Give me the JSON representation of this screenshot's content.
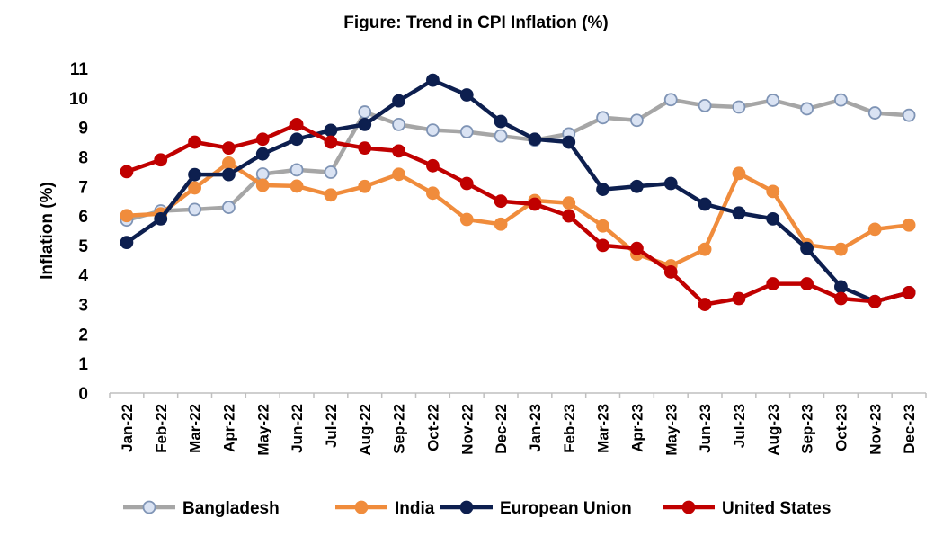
{
  "chart_data": {
    "type": "line",
    "title": "Figure: Trend in CPI Inflation (%)",
    "xlabel": "",
    "ylabel": "Inflation (%)",
    "ylim": [
      0,
      11
    ],
    "yticks": [
      0,
      1,
      2,
      3,
      4,
      5,
      6,
      7,
      8,
      9,
      10,
      11
    ],
    "grid": false,
    "legend_position": "bottom",
    "categories": [
      "Jan-22",
      "Feb-22",
      "Mar-22",
      "Apr-22",
      "May-22",
      "Jun-22",
      "Jul-22",
      "Aug-22",
      "Sep-22",
      "Oct-22",
      "Nov-22",
      "Dec-22",
      "Jan-23",
      "Feb-23",
      "Mar-23",
      "Apr-23",
      "May-23",
      "Jun-23",
      "Jul-23",
      "Aug-23",
      "Sep-23",
      "Oct-23",
      "Nov-23",
      "Dec-23"
    ],
    "series": [
      {
        "name": "Bangladesh",
        "color": "#a6a6a6",
        "marker_fill": "#dae3f3",
        "marker_stroke": "#7f94b5",
        "values": [
          5.86,
          6.17,
          6.22,
          6.29,
          7.42,
          7.56,
          7.48,
          9.52,
          9.1,
          8.91,
          8.85,
          8.71,
          8.57,
          8.78,
          9.33,
          9.24,
          9.94,
          9.74,
          9.69,
          9.92,
          9.63,
          9.93,
          9.49,
          9.41
        ]
      },
      {
        "name": "India",
        "color": "#f08c3c",
        "marker_fill": "#f08c3c",
        "marker_stroke": "#f08c3c",
        "values": [
          6.01,
          6.07,
          6.95,
          7.79,
          7.04,
          7.01,
          6.71,
          7.0,
          7.41,
          6.77,
          5.88,
          5.72,
          6.52,
          6.44,
          5.66,
          4.7,
          4.31,
          4.87,
          7.44,
          6.83,
          5.02,
          4.87,
          5.55,
          5.69
        ]
      },
      {
        "name": "European Union",
        "color": "#0d1f4f",
        "marker_fill": "#0d1f4f",
        "marker_stroke": "#0d1f4f",
        "values": [
          5.1,
          5.9,
          7.4,
          7.4,
          8.1,
          8.6,
          8.9,
          9.1,
          9.9,
          10.6,
          10.1,
          9.2,
          8.6,
          8.5,
          6.9,
          7.0,
          7.1,
          6.4,
          6.1,
          5.9,
          4.9,
          3.6,
          3.1,
          3.4
        ]
      },
      {
        "name": "United States",
        "color": "#c00000",
        "marker_fill": "#c00000",
        "marker_stroke": "#c00000",
        "values": [
          7.5,
          7.9,
          8.5,
          8.3,
          8.6,
          9.1,
          8.5,
          8.3,
          8.2,
          7.7,
          7.1,
          6.5,
          6.4,
          6.0,
          5.0,
          4.9,
          4.1,
          3.0,
          3.2,
          3.7,
          3.7,
          3.2,
          3.1,
          3.4
        ]
      }
    ]
  }
}
